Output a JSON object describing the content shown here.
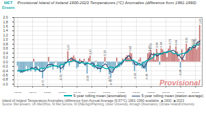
{
  "chart_data": {
    "type": "bar",
    "title": "Provisional Island of Ireland 1900-2023 Temperatures (°C) Anomalies (difference from 1961-1990)",
    "x": [
      1900,
      1901,
      1902,
      1903,
      1904,
      1905,
      1906,
      1907,
      1908,
      1909,
      1910,
      1911,
      1912,
      1913,
      1914,
      1915,
      1916,
      1917,
      1918,
      1919,
      1920,
      1921,
      1922,
      1923,
      1924,
      1925,
      1926,
      1927,
      1928,
      1929,
      1930,
      1931,
      1932,
      1933,
      1934,
      1935,
      1936,
      1937,
      1938,
      1939,
      1940,
      1941,
      1942,
      1943,
      1944,
      1945,
      1946,
      1947,
      1948,
      1949,
      1950,
      1951,
      1952,
      1953,
      1954,
      1955,
      1956,
      1957,
      1958,
      1959,
      1960,
      1961,
      1962,
      1963,
      1964,
      1965,
      1966,
      1967,
      1968,
      1969,
      1970,
      1971,
      1972,
      1973,
      1974,
      1975,
      1976,
      1977,
      1978,
      1979,
      1980,
      1981,
      1982,
      1983,
      1984,
      1985,
      1986,
      1987,
      1988,
      1989,
      1990,
      1991,
      1992,
      1993,
      1994,
      1995,
      1996,
      1997,
      1998,
      1999,
      2000,
      2001,
      2002,
      2003,
      2004,
      2005,
      2006,
      2007,
      2008,
      2009,
      2010,
      2011,
      2012,
      2013,
      2014,
      2015,
      2016,
      2017,
      2018,
      2019,
      2020,
      2021,
      2022,
      2023
    ],
    "values": [
      -0.18,
      -0.42,
      -0.52,
      -0.49,
      -0.46,
      -0.41,
      -0.19,
      -0.45,
      -0.29,
      -0.44,
      -0.28,
      0.13,
      -0.46,
      -0.37,
      -0.2,
      -0.46,
      -0.29,
      -0.75,
      -0.35,
      -0.23,
      -0.23,
      0.21,
      -0.18,
      -0.11,
      -0.36,
      -0.08,
      0.03,
      -0.32,
      -0.19,
      -0.5,
      -0.11,
      -0.36,
      -0.05,
      0.01,
      0.47,
      -0.18,
      0.1,
      0.2,
      0.28,
      0.15,
      -0.3,
      -0.24,
      0.13,
      0.06,
      -0.02,
      0.13,
      -0.2,
      -0.54,
      0.16,
      0.27,
      -0.09,
      -0.25,
      -0.31,
      0.04,
      -0.36,
      -0.32,
      -0.48,
      -0.29,
      -0.1,
      0.22,
      -0.05,
      -0.17,
      -0.57,
      -0.72,
      -0.44,
      -0.39,
      -0.22,
      0.18,
      -0.24,
      -0.24,
      -0.17,
      0.14,
      0.01,
      0.21,
      0.29,
      0.16,
      0.42,
      0.37,
      -0.13,
      -0.43,
      -0.05,
      -0.18,
      0.09,
      0.18,
      -0.3,
      -0.31,
      -0.33,
      -0.46,
      0.38,
      0.43,
      0.53,
      0.17,
      0.4,
      0.08,
      0.58,
      0.4,
      -0.14,
      0.6,
      0.55,
      0.44,
      0.39,
      0.21,
      0.59,
      0.73,
      0.46,
      0.41,
      0.36,
      0.69,
      0.46,
      0.14,
      -0.28,
      0.55,
      0.11,
      0.08,
      0.81,
      0.59,
      0.63,
      0.52,
      0.73,
      0.69,
      0.74,
      0.56,
      0.65,
      1.65
    ],
    "colors": [
      "#78aec8",
      "#78aec8",
      "#78aec8",
      "#78aec8",
      "#78aec8",
      "#78aec8",
      "#78aec8",
      "#78aec8",
      "#78aec8",
      "#78aec8",
      "#78aec8",
      "#c87878",
      "#78aec8",
      "#78aec8",
      "#78aec8",
      "#78aec8",
      "#78aec8",
      "#78aec8",
      "#78aec8",
      "#78aec8",
      "#78aec8",
      "#c87878",
      "#78aec8",
      "#78aec8",
      "#78aec8",
      "#78aec8",
      "#c87878",
      "#78aec8",
      "#78aec8",
      "#78aec8",
      "#78aec8",
      "#78aec8",
      "#78aec8",
      "#c87878",
      "#c87878",
      "#78aec8",
      "#c87878",
      "#c87878",
      "#c87878",
      "#c87878",
      "#78aec8",
      "#78aec8",
      "#c87878",
      "#c87878",
      "#78aec8",
      "#c87878",
      "#78aec8",
      "#78aec8",
      "#c87878",
      "#c87878",
      "#78aec8",
      "#78aec8",
      "#78aec8",
      "#c87878",
      "#78aec8",
      "#78aec8",
      "#78aec8",
      "#78aec8",
      "#78aec8",
      "#c87878",
      "#78aec8",
      "#78aec8",
      "#78aec8",
      "#78aec8",
      "#78aec8",
      "#78aec8",
      "#78aec8",
      "#c87878",
      "#78aec8",
      "#78aec8",
      "#78aec8",
      "#c87878",
      "#c87878",
      "#c87878",
      "#c87878",
      "#c87878",
      "#c87878",
      "#c87878",
      "#78aec8",
      "#78aec8",
      "#78aec8",
      "#78aec8",
      "#c87878",
      "#c87878",
      "#78aec8",
      "#78aec8",
      "#78aec8",
      "#78aec8",
      "#c87878",
      "#c87878",
      "#c87878",
      "#c87878",
      "#c87878",
      "#c87878",
      "#c87878",
      "#c87878",
      "#78aec8",
      "#c87878",
      "#c87878",
      "#c87878",
      "#c87878",
      "#c87878",
      "#c87878",
      "#c87878",
      "#c87878",
      "#c87878",
      "#c87878",
      "#c87878",
      "#c87878",
      "#c87878",
      "#78aec8",
      "#c87878",
      "#c87878",
      "#c87878",
      "#c87878",
      "#c87878",
      "#c87878",
      "#c87878",
      "#c87878",
      "#c87878",
      "#c87878",
      "#c87878",
      "#c87878",
      "#c87878"
    ],
    "value_labels": [
      null,
      null,
      null,
      null,
      null,
      null,
      null,
      null,
      null,
      null,
      null,
      null,
      null,
      null,
      null,
      null,
      null,
      "-0.75",
      null,
      null,
      null,
      null,
      null,
      null,
      null,
      null,
      null,
      null,
      null,
      "-0.50",
      null,
      null,
      null,
      null,
      "0.47",
      null,
      null,
      null,
      null,
      null,
      null,
      null,
      null,
      null,
      null,
      null,
      null,
      "-0.54",
      null,
      "0.27",
      null,
      null,
      null,
      null,
      null,
      null,
      null,
      null,
      null,
      "0.22",
      null,
      null,
      "-0.57",
      "-0.72",
      null,
      null,
      null,
      null,
      null,
      null,
      null,
      null,
      null,
      null,
      null,
      null,
      "0.42",
      null,
      null,
      "-0.43",
      null,
      null,
      null,
      null,
      null,
      null,
      null,
      "-0.46",
      null,
      "0.43",
      "0.53",
      null,
      null,
      null,
      "0.58",
      null,
      null,
      "0.60",
      null,
      null,
      null,
      null,
      null,
      "0.73",
      null,
      null,
      null,
      "0.69",
      null,
      null,
      "-0.28",
      null,
      null,
      null,
      "0.81",
      null,
      null,
      null,
      "0.73",
      "0.69",
      "0.74",
      null,
      "0.65",
      "1.65"
    ],
    "series": [
      {
        "name": "5-year rolling mean (anomalies)",
        "type": "line",
        "color": "#00b0b0",
        "values": [
          -0.4133,
          -0.3814,
          -0.39,
          -0.3789,
          -0.385,
          -0.3755,
          -0.3473,
          -0.3509,
          -0.3373,
          -0.3109,
          -0.3109,
          -0.3,
          -0.3509,
          -0.3418,
          -0.3364,
          -0.3173,
          -0.2727,
          -0.3009,
          -0.2691,
          -0.2682,
          -0.2573,
          -0.2127,
          -0.2155,
          -0.1645,
          -0.1782,
          -0.1673,
          -0.1791,
          -0.2027,
          -0.1855,
          -0.1327,
          -0.1164,
          -0.1,
          -0.0845,
          -0.03,
          0.0009,
          0.0191,
          0.0073,
          0.0518,
          0.0618,
          0.0591,
          0.0282,
          0.0264,
          -0.0318,
          -0.0355,
          -0.0364,
          -0.0582,
          -0.0536,
          -0.06,
          -0.0682,
          -0.1064,
          -0.1336,
          -0.1891,
          -0.1973,
          -0.1573,
          -0.1518,
          -0.1809,
          -0.1882,
          -0.2173,
          -0.2545,
          -0.2982,
          -0.3009,
          -0.2918,
          -0.2318,
          -0.2273,
          -0.24,
          -0.2755,
          -0.2582,
          -0.2418,
          -0.1709,
          -0.0791,
          -0.0245,
          0.0491,
          0.1027,
          0.0745,
          0.0573,
          0.0745,
          0.0736,
          0.0691,
          0.0845,
          0.0382,
          -0.0164,
          -0.0609,
          -0.1409,
          -0.14,
          -0.0891,
          -0.0018,
          0.0182,
          0.0709,
          0.07,
          0.1064,
          0.17,
          0.1855,
          0.27,
          0.3618,
          0.3673,
          0.3636,
          0.3345,
          0.3727,
          0.4027,
          0.4373,
          0.4218,
          0.4182,
          0.4936,
          0.4809,
          0.4436,
          0.3782,
          0.3927,
          0.3836,
          0.3373,
          0.3445,
          0.3564,
          0.3764,
          0.3909,
          0.3945,
          0.4155,
          0.47,
          0.5464,
          0.5555,
          0.6955,
          0.757,
          0.7511,
          0.77125,
          0.7914,
          0.8367
        ]
      },
      {
        "name": "5-year rolling mean (station average)",
        "type": "line",
        "color": "#1a3a6b",
        "values": [
          -0.3733,
          -0.4025,
          -0.414,
          -0.46,
          -0.414,
          -0.4,
          -0.36,
          -0.356,
          -0.33,
          -0.266,
          -0.268,
          -0.284,
          -0.236,
          -0.272,
          -0.356,
          -0.414,
          -0.41,
          -0.416,
          -0.37,
          -0.27,
          -0.156,
          -0.108,
          -0.134,
          -0.104,
          -0.14,
          -0.168,
          -0.184,
          -0.212,
          -0.218,
          -0.296,
          -0.242,
          -0.202,
          -0.008,
          -0.022,
          0.07,
          0.12,
          0.174,
          0.11,
          0.086,
          0.018,
          0.004,
          -0.04,
          -0.074,
          0.012,
          0.02,
          -0.114,
          -0.094,
          -0.036,
          -0.08,
          -0.09,
          -0.044,
          -0.068,
          -0.194,
          -0.24,
          -0.286,
          -0.282,
          -0.31,
          -0.194,
          -0.14,
          -0.078,
          -0.134,
          -0.258,
          -0.39,
          -0.458,
          -0.468,
          -0.318,
          -0.222,
          -0.182,
          -0.138,
          -0.066,
          -0.1,
          -0.01,
          0.096,
          0.162,
          0.218,
          0.29,
          0.222,
          0.078,
          0.036,
          -0.084,
          -0.14,
          -0.078,
          -0.052,
          -0.104,
          -0.134,
          -0.244,
          -0.204,
          -0.058,
          0.11,
          0.21,
          0.382,
          0.322,
          0.352,
          0.326,
          0.264,
          0.304,
          0.398,
          0.37,
          0.368,
          0.438,
          0.436,
          0.472,
          0.476,
          0.48,
          0.51,
          0.53,
          0.476,
          0.412,
          0.274,
          0.312,
          0.196,
          0.12,
          0.254,
          0.428,
          0.444,
          0.526,
          0.656,
          0.632,
          0.662,
          0.648,
          0.674,
          0.858,
          0.9,
          0.9533
        ]
      }
    ],
    "xlim": [
      1897.5,
      2024.5
    ],
    "xticks": [
      1900,
      1910,
      1920,
      1930,
      1940,
      1950,
      1960,
      1970,
      1980,
      1990,
      2000,
      2010,
      2020
    ],
    "ylim": [
      -1.1,
      2.0
    ],
    "yticks": [
      {
        "value": -1,
        "label": "-1.0"
      },
      -0.8,
      -0.6,
      -0.4,
      -0.2,
      {
        "value": 0,
        "label": "0.0"
      },
      0.2,
      0.4,
      0.6,
      0.8,
      {
        "value": 1,
        "label": "1.0"
      },
      1.2,
      1.4,
      1.6,
      1.8,
      {
        "value": 2,
        "label": "2.0"
      }
    ],
    "grid": true,
    "legend": "lower right",
    "annotations": [
      {
        "text": "Provisional",
        "color": "#cc2222"
      },
      {
        "text": "MET",
        "color": "#2ab0b0"
      },
      {
        "text": "Éireann",
        "color": "#2ab0b0"
      },
      {
        "text": "Island of Ireland Temperature Anomalies (difference from Annual Average (9.57°C) 1961-1990 available  ■ 1900  ■ 2023"
      },
      {
        "text": "Source: Met Éireann, UK MetOffice, NI Met Service, NI DNE/Agri/Planning, Ulster University, Armagh Observatory, Climate Ireland/University"
      }
    ]
  }
}
